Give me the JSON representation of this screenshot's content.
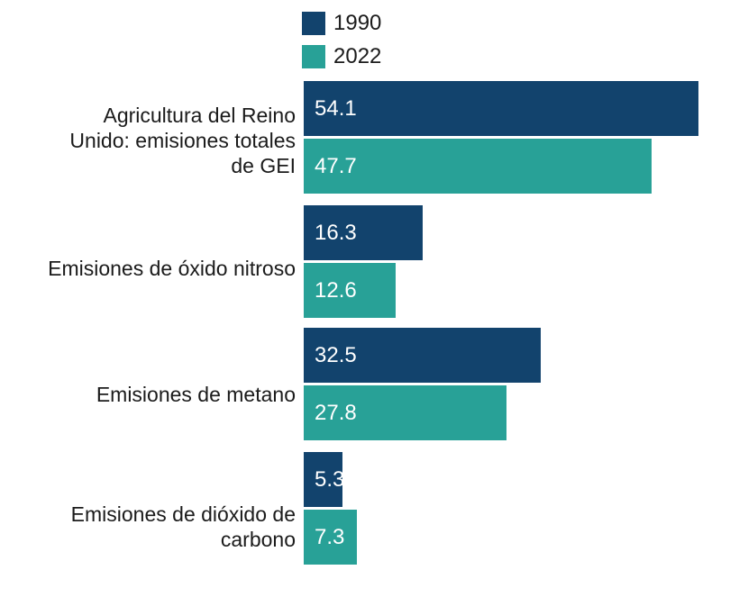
{
  "chart_data": {
    "type": "bar",
    "orientation": "horizontal",
    "title": "",
    "xlabel": "",
    "ylabel": "",
    "categories": [
      "Agricultura del Reino Unido: emisiones totales de GEI",
      "Emisiones de óxido nitroso",
      "Emisiones de metano",
      "Emisiones de dióxido de carbono"
    ],
    "series": [
      {
        "name": "1990",
        "color": "#12436D",
        "values": [
          54.1,
          16.3,
          32.5,
          5.3
        ],
        "value_labels": [
          "54.1",
          "16.3",
          "32.5",
          "5.3"
        ]
      },
      {
        "name": "2022",
        "color": "#28A197",
        "values": [
          47.7,
          12.6,
          27.8,
          7.3
        ],
        "value_labels": [
          "47.7",
          "12.6",
          "27.8",
          "7.3"
        ]
      }
    ],
    "xlim": [
      0,
      60
    ],
    "grid": false,
    "axes_shown": false,
    "legend_position": "top-left",
    "value_labels_inside_bars": true
  },
  "category_label_lines": [
    [
      "Agricultura del Reino",
      "Unido: emisiones totales",
      "de GEI"
    ],
    [
      "Emisiones de óxido nitroso"
    ],
    [
      "Emisiones de metano"
    ],
    [
      "Emisiones de dióxido de",
      "carbono"
    ]
  ],
  "legend": {
    "items": [
      {
        "label": "1990",
        "color": "#12436D"
      },
      {
        "label": "2022",
        "color": "#28A197"
      }
    ]
  },
  "colors": {
    "background": "#ffffff",
    "category_text": "#1b1b1b",
    "value_text": "#ffffff"
  }
}
